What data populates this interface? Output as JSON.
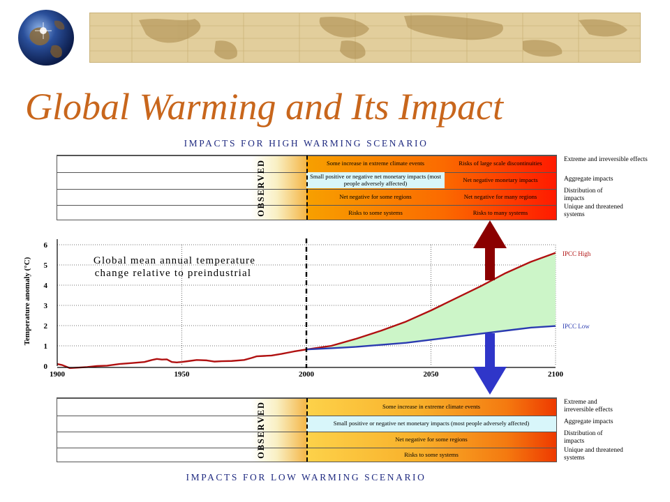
{
  "slide": {
    "title": "Global Warming and Its Impact"
  },
  "top_panel": {
    "heading": "IMPACTS FOR HIGH WARMING SCENARIO",
    "observed_label": "OBSERVED",
    "rows": [
      {
        "cells": [
          {
            "text": "Some increase in extreme climate events"
          },
          {
            "text": "Risks of large scale discontinuities"
          }
        ],
        "side": "Extreme and irreversible effects"
      },
      {
        "cells": [
          {
            "text": "Small positive or negative net monetary impacts (most people adversely affected)"
          },
          {
            "text": "Net negative monetary impacts"
          }
        ],
        "side": "Aggregate impacts"
      },
      {
        "cells": [
          {
            "text": "Net negative for some regions"
          },
          {
            "text": "Net negative for many regions"
          }
        ],
        "side": "Distribution of impacts"
      },
      {
        "cells": [
          {
            "text": "Risks to some systems"
          },
          {
            "text": "Risks to many systems"
          }
        ],
        "side": "Unique and threatened systems"
      }
    ]
  },
  "bottom_panel": {
    "heading": "IMPACTS FOR LOW WARMING SCENARIO",
    "observed_label": "OBSERVED",
    "rows": [
      {
        "cells": [
          {
            "text": "Some increase in extreme climate events"
          }
        ],
        "side": "Extreme and irreversible effects"
      },
      {
        "cells": [
          {
            "text": "Small positive or negative net monetary impacts (most people adversely affected)"
          }
        ],
        "side": "Aggregate impacts"
      },
      {
        "cells": [
          {
            "text": "Net negative for some regions"
          }
        ],
        "side": "Distribution of impacts"
      },
      {
        "cells": [
          {
            "text": "Risks to some systems"
          }
        ],
        "side": "Unique and threatened systems"
      }
    ]
  },
  "chart_data": {
    "type": "line",
    "title": "Global mean annual temperature change relative to preindustrial",
    "xlabel": "",
    "ylabel": "Temperature anomaly (°C)",
    "xlim": [
      1900,
      2100
    ],
    "ylim": [
      0,
      6
    ],
    "xticks": [
      1900,
      1950,
      2000,
      2050,
      2100
    ],
    "yticks": [
      0,
      1,
      2,
      3,
      4,
      5,
      6
    ],
    "grid": "horizontal dotted",
    "divider_year": 2000,
    "series": [
      {
        "name": "",
        "role": "observed",
        "color": "#b01010",
        "x": [
          1900,
          1902,
          1905,
          1908,
          1912,
          1916,
          1920,
          1925,
          1930,
          1935,
          1938,
          1940,
          1942,
          1944,
          1946,
          1948,
          1950,
          1953,
          1956,
          1960,
          1963,
          1966,
          1970,
          1975,
          1978,
          1980,
          1983,
          1986,
          1990,
          1995,
          2000
        ],
        "y": [
          0.1,
          0.05,
          -0.1,
          -0.08,
          -0.05,
          0.0,
          0.02,
          0.1,
          0.15,
          0.2,
          0.3,
          0.35,
          0.32,
          0.33,
          0.2,
          0.18,
          0.2,
          0.25,
          0.3,
          0.28,
          0.22,
          0.24,
          0.25,
          0.3,
          0.4,
          0.48,
          0.5,
          0.52,
          0.6,
          0.72,
          0.82
        ]
      },
      {
        "name": "IPCC High",
        "color": "#b01010",
        "x": [
          2000,
          2010,
          2020,
          2030,
          2040,
          2050,
          2060,
          2070,
          2080,
          2090,
          2100
        ],
        "y": [
          0.82,
          1.0,
          1.35,
          1.75,
          2.2,
          2.75,
          3.35,
          3.95,
          4.6,
          5.15,
          5.6
        ]
      },
      {
        "name": "IPCC Low",
        "color": "#2a3ab0",
        "x": [
          2000,
          2010,
          2020,
          2030,
          2040,
          2050,
          2060,
          2070,
          2080,
          2090,
          2100
        ],
        "y": [
          0.82,
          0.88,
          0.95,
          1.05,
          1.15,
          1.3,
          1.45,
          1.6,
          1.75,
          1.9,
          1.98
        ]
      }
    ],
    "fill_between": {
      "upper": "IPCC High",
      "lower": "IPCC Low",
      "color": "#ccf5c8"
    },
    "colors": {
      "arrow_up": "#8b0000",
      "arrow_down": "#2f36c9",
      "panel_warm": "#f0a000",
      "panel_hot": "#ff1a00"
    }
  }
}
